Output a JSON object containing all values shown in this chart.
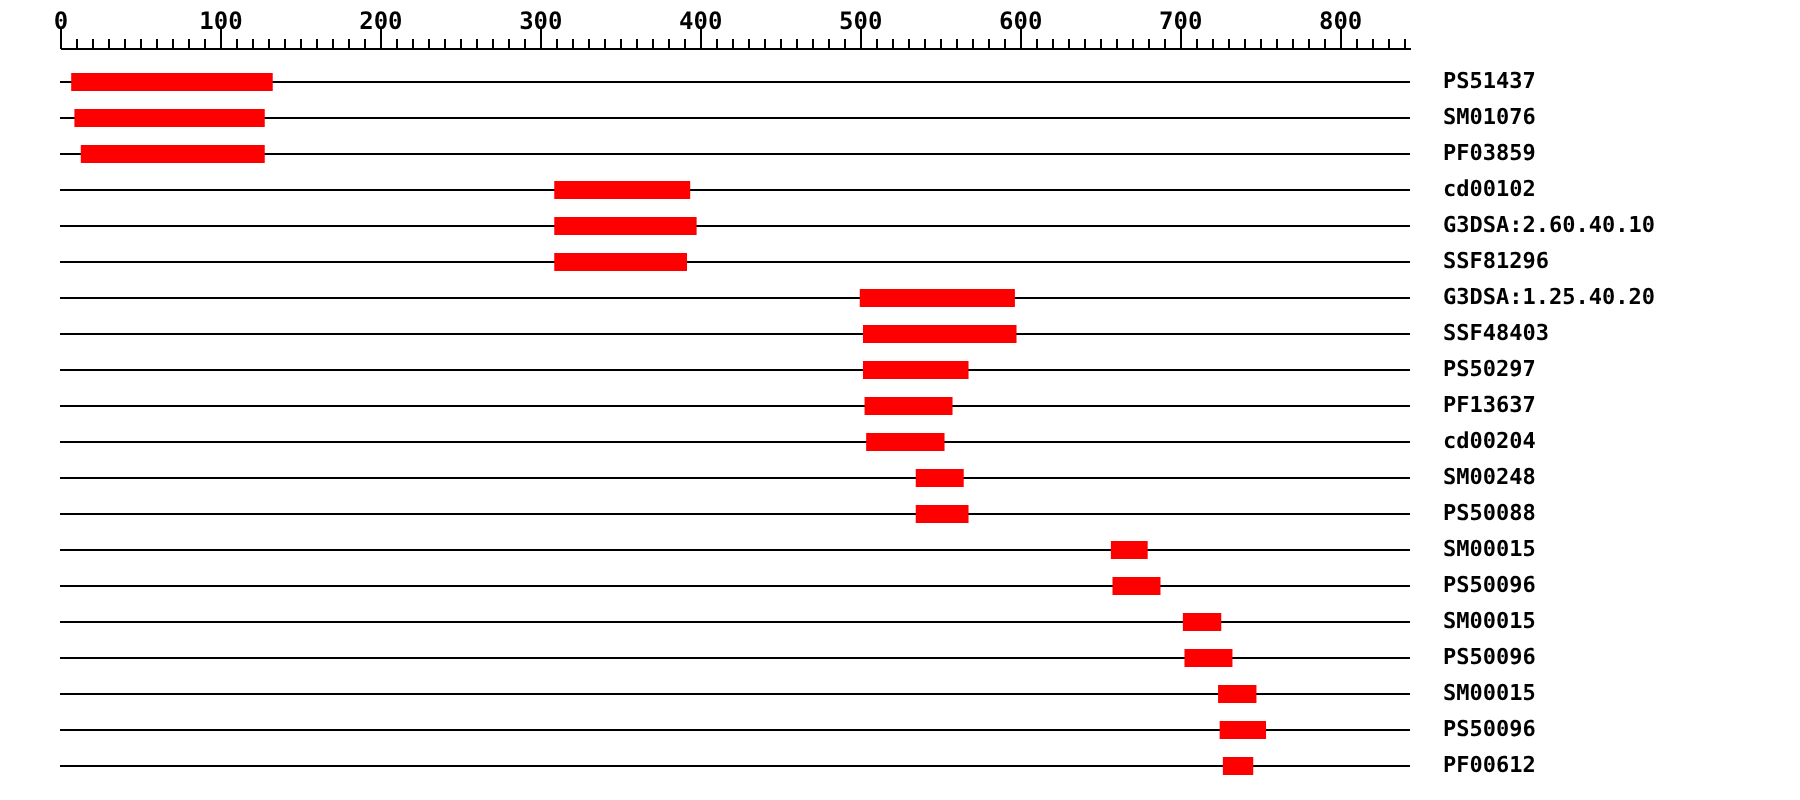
{
  "chart_data": {
    "type": "bar",
    "orientation": "horizontal",
    "categories": [
      "PS51437",
      "SM01076",
      "PF03859",
      "cd00102",
      "G3DSA:2.60.40.10",
      "SSF81296",
      "G3DSA:1.25.40.20",
      "SSF48403",
      "PS50297",
      "PF13637",
      "cd00204",
      "SM00248",
      "PS50088",
      "SM00015",
      "PS50096",
      "SM00015",
      "PS50096",
      "SM00015",
      "PS50096",
      "PF00612"
    ],
    "base": [
      7,
      9,
      13,
      309,
      309,
      309,
      500,
      502,
      502,
      503,
      504,
      535,
      535,
      657,
      658,
      702,
      703,
      724,
      725,
      727
    ],
    "values": [
      126,
      119,
      115,
      85,
      89,
      83,
      97,
      96,
      66,
      55,
      49,
      30,
      33,
      23,
      30,
      24,
      30,
      24,
      29,
      19
    ],
    "color": "#ff0000",
    "xlim": [
      0,
      844
    ],
    "xticks": [
      0,
      {
        "value": 10,
        "label": null
      },
      {
        "value": 20,
        "label": null
      },
      {
        "value": 30,
        "label": null
      },
      {
        "value": 40,
        "label": null
      },
      {
        "value": 50,
        "label": null
      },
      {
        "value": 60,
        "label": null
      },
      {
        "value": 70,
        "label": null
      },
      {
        "value": 80,
        "label": null
      },
      {
        "value": 90,
        "label": null
      },
      100,
      {
        "value": 110,
        "label": null
      },
      {
        "value": 120,
        "label": null
      },
      {
        "value": 130,
        "label": null
      },
      {
        "value": 140,
        "label": null
      },
      {
        "value": 150,
        "label": null
      },
      {
        "value": 160,
        "label": null
      },
      {
        "value": 170,
        "label": null
      },
      {
        "value": 180,
        "label": null
      },
      {
        "value": 190,
        "label": null
      },
      200,
      {
        "value": 210,
        "label": null
      },
      {
        "value": 220,
        "label": null
      },
      {
        "value": 230,
        "label": null
      },
      {
        "value": 240,
        "label": null
      },
      {
        "value": 250,
        "label": null
      },
      {
        "value": 260,
        "label": null
      },
      {
        "value": 270,
        "label": null
      },
      {
        "value": 280,
        "label": null
      },
      {
        "value": 290,
        "label": null
      },
      300,
      {
        "value": 310,
        "label": null
      },
      {
        "value": 320,
        "label": null
      },
      {
        "value": 330,
        "label": null
      },
      {
        "value": 340,
        "label": null
      },
      {
        "value": 350,
        "label": null
      },
      {
        "value": 360,
        "label": null
      },
      {
        "value": 370,
        "label": null
      },
      {
        "value": 380,
        "label": null
      },
      {
        "value": 390,
        "label": null
      },
      400,
      {
        "value": 410,
        "label": null
      },
      {
        "value": 420,
        "label": null
      },
      {
        "value": 430,
        "label": null
      },
      {
        "value": 440,
        "label": null
      },
      {
        "value": 450,
        "label": null
      },
      {
        "value": 460,
        "label": null
      },
      {
        "value": 470,
        "label": null
      },
      {
        "value": 480,
        "label": null
      },
      {
        "value": 490,
        "label": null
      },
      500,
      {
        "value": 510,
        "label": null
      },
      {
        "value": 520,
        "label": null
      },
      {
        "value": 530,
        "label": null
      },
      {
        "value": 540,
        "label": null
      },
      {
        "value": 550,
        "label": null
      },
      {
        "value": 560,
        "label": null
      },
      {
        "value": 570,
        "label": null
      },
      {
        "value": 580,
        "label": null
      },
      {
        "value": 590,
        "label": null
      },
      600,
      {
        "value": 610,
        "label": null
      },
      {
        "value": 620,
        "label": null
      },
      {
        "value": 630,
        "label": null
      },
      {
        "value": 640,
        "label": null
      },
      {
        "value": 650,
        "label": null
      },
      {
        "value": 660,
        "label": null
      },
      {
        "value": 670,
        "label": null
      },
      {
        "value": 680,
        "label": null
      },
      {
        "value": 690,
        "label": null
      },
      700,
      {
        "value": 710,
        "label": null
      },
      {
        "value": 720,
        "label": null
      },
      {
        "value": 730,
        "label": null
      },
      {
        "value": 740,
        "label": null
      },
      {
        "value": 750,
        "label": null
      },
      {
        "value": 760,
        "label": null
      },
      {
        "value": 770,
        "label": null
      },
      {
        "value": 780,
        "label": null
      },
      {
        "value": 790,
        "label": null
      },
      800,
      {
        "value": 810,
        "label": null
      },
      {
        "value": 820,
        "label": null
      },
      {
        "value": 830,
        "label": null
      },
      {
        "value": 840,
        "label": null
      }
    ],
    "grid": "y"
  }
}
